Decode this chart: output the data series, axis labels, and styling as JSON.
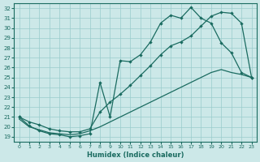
{
  "xlabel": "Humidex (Indice chaleur)",
  "bg_color": "#cce8e8",
  "line_color": "#1a6b60",
  "grid_color": "#99cccc",
  "xlim": [
    -0.5,
    23.5
  ],
  "ylim": [
    18.5,
    32.5
  ],
  "yticks": [
    19,
    20,
    21,
    22,
    23,
    24,
    25,
    26,
    27,
    28,
    29,
    30,
    31,
    32
  ],
  "xticks": [
    0,
    1,
    2,
    3,
    4,
    5,
    6,
    7,
    8,
    9,
    10,
    11,
    12,
    13,
    14,
    15,
    16,
    17,
    18,
    19,
    20,
    21,
    22,
    23
  ],
  "line1_x": [
    0,
    1,
    2,
    3,
    4,
    5,
    6,
    7,
    8,
    9,
    10,
    11,
    12,
    13,
    14,
    15,
    16,
    17,
    18,
    19,
    20,
    21,
    22,
    23
  ],
  "line1_y": [
    21.0,
    20.1,
    19.6,
    19.3,
    19.2,
    19.0,
    19.1,
    19.3,
    24.5,
    21.0,
    26.7,
    26.6,
    27.3,
    28.6,
    30.5,
    31.3,
    31.0,
    32.1,
    31.0,
    30.5,
    28.5,
    27.5,
    25.5,
    25.0
  ],
  "line2_x": [
    0,
    1,
    2,
    3,
    4,
    5,
    6,
    7,
    8,
    9,
    10,
    11,
    12,
    13,
    14,
    15,
    16,
    17,
    18,
    19,
    20,
    21,
    22,
    23
  ],
  "line2_y": [
    21.0,
    20.5,
    20.2,
    19.8,
    19.6,
    19.5,
    19.5,
    19.8,
    21.5,
    22.5,
    23.3,
    24.2,
    25.2,
    26.2,
    27.3,
    28.2,
    28.6,
    29.2,
    30.2,
    31.2,
    31.6,
    31.5,
    30.5,
    25.0
  ],
  "line3_x": [
    0,
    1,
    2,
    3,
    4,
    5,
    6,
    7,
    8,
    9,
    10,
    11,
    12,
    13,
    14,
    15,
    16,
    17,
    18,
    19,
    20,
    21,
    22,
    23
  ],
  "line3_y": [
    20.8,
    20.0,
    19.7,
    19.4,
    19.3,
    19.2,
    19.3,
    19.6,
    20.0,
    20.5,
    21.0,
    21.5,
    22.0,
    22.5,
    23.0,
    23.5,
    24.0,
    24.5,
    25.0,
    25.5,
    25.8,
    25.5,
    25.3,
    25.0
  ]
}
